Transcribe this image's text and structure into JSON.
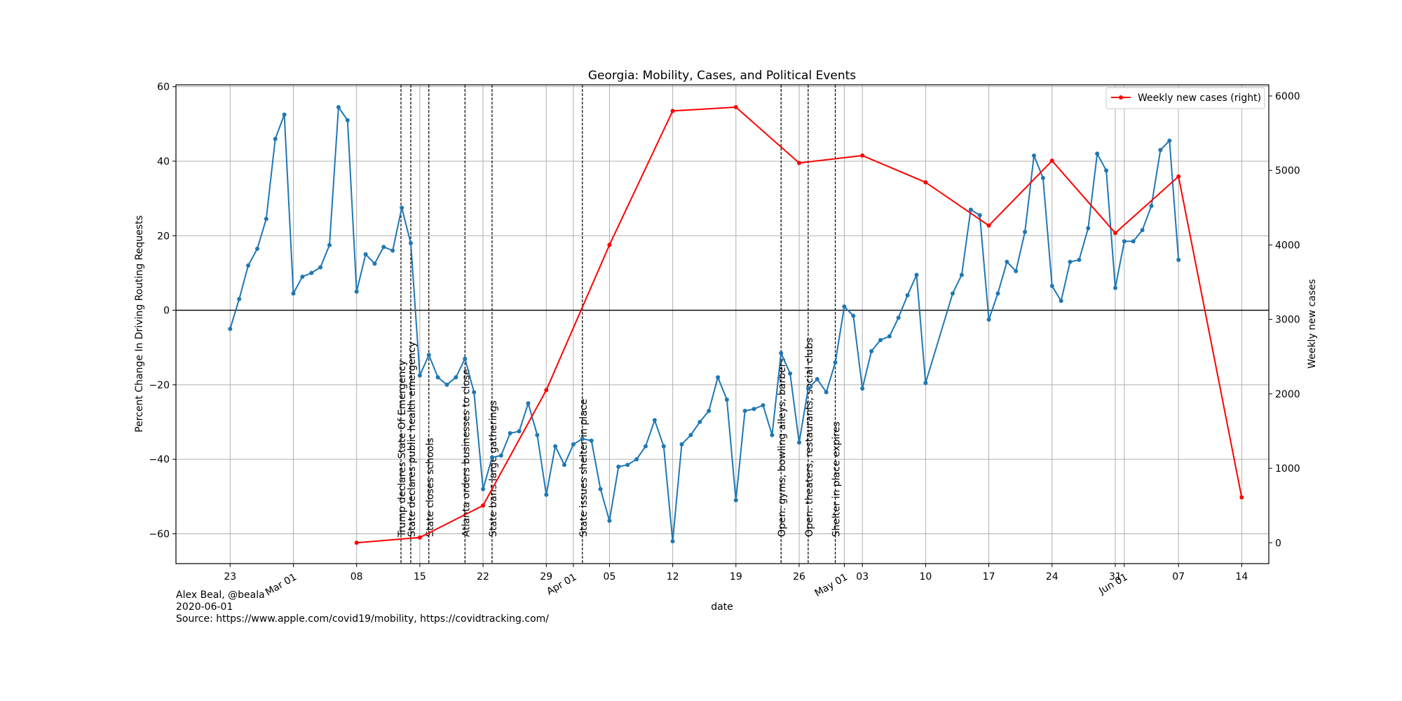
{
  "chart_data": {
    "type": "line",
    "title": "Georgia: Mobility, Cases, and Political Events",
    "xlabel": "date",
    "ylabel_left": "Percent Change In Driving Routing Requests",
    "ylabel_right": "Weekly new cases",
    "ylim_left": [
      -68,
      60.5
    ],
    "ylim_right": [
      -280,
      6150
    ],
    "xlim": [
      "2020-02-17",
      "2020-06-17"
    ],
    "grid": true,
    "legend_placement": "top-right",
    "left_ticks": [
      -60,
      -40,
      -20,
      0,
      20,
      40,
      60
    ],
    "right_ticks": [
      0,
      1000,
      2000,
      3000,
      4000,
      5000,
      6000
    ],
    "left_tick_labels": [
      "−60",
      "−40",
      "−20",
      "0",
      "20",
      "40",
      "60"
    ],
    "right_tick_labels": [
      "0",
      "1000",
      "2000",
      "3000",
      "4000",
      "5000",
      "6000"
    ],
    "x_ticks": [
      {
        "date": "2020-02-23",
        "label": "23",
        "rotated": false
      },
      {
        "date": "2020-03-01",
        "label": "Mar 01",
        "rotated": true
      },
      {
        "date": "2020-03-08",
        "label": "08",
        "rotated": false
      },
      {
        "date": "2020-03-15",
        "label": "15",
        "rotated": false
      },
      {
        "date": "2020-03-22",
        "label": "22",
        "rotated": false
      },
      {
        "date": "2020-03-29",
        "label": "29",
        "rotated": false
      },
      {
        "date": "2020-04-01",
        "label": "Apr 01",
        "rotated": true
      },
      {
        "date": "2020-04-05",
        "label": "05",
        "rotated": false
      },
      {
        "date": "2020-04-12",
        "label": "12",
        "rotated": false
      },
      {
        "date": "2020-04-19",
        "label": "19",
        "rotated": false
      },
      {
        "date": "2020-04-26",
        "label": "26",
        "rotated": false
      },
      {
        "date": "2020-05-01",
        "label": "May 01",
        "rotated": true
      },
      {
        "date": "2020-05-03",
        "label": "03",
        "rotated": false
      },
      {
        "date": "2020-05-10",
        "label": "10",
        "rotated": false
      },
      {
        "date": "2020-05-17",
        "label": "17",
        "rotated": false
      },
      {
        "date": "2020-05-24",
        "label": "24",
        "rotated": false
      },
      {
        "date": "2020-05-31",
        "label": "31",
        "rotated": false
      },
      {
        "date": "2020-06-01",
        "label": "Jun 01",
        "rotated": true
      },
      {
        "date": "2020-06-07",
        "label": "07",
        "rotated": false
      },
      {
        "date": "2020-06-14",
        "label": "14",
        "rotated": false
      }
    ],
    "series": [
      {
        "axis": "left",
        "color": "#1f77b4",
        "points": [
          [
            "2020-02-23",
            -5
          ],
          [
            "2020-02-24",
            3
          ],
          [
            "2020-02-25",
            12
          ],
          [
            "2020-02-26",
            16.5
          ],
          [
            "2020-02-27",
            24.5
          ],
          [
            "2020-02-28",
            46
          ],
          [
            "2020-02-29",
            52.5
          ],
          [
            "2020-03-01",
            4.5
          ],
          [
            "2020-03-02",
            9
          ],
          [
            "2020-03-03",
            10
          ],
          [
            "2020-03-04",
            11.5
          ],
          [
            "2020-03-05",
            17.5
          ],
          [
            "2020-03-06",
            54.5
          ],
          [
            "2020-03-07",
            51
          ],
          [
            "2020-03-08",
            5
          ],
          [
            "2020-03-09",
            15
          ],
          [
            "2020-03-10",
            12.5
          ],
          [
            "2020-03-11",
            17
          ],
          [
            "2020-03-12",
            16
          ],
          [
            "2020-03-13",
            27.5
          ],
          [
            "2020-03-14",
            18
          ],
          [
            "2020-03-15",
            -17.5
          ],
          [
            "2020-03-16",
            -12
          ],
          [
            "2020-03-17",
            -18
          ],
          [
            "2020-03-18",
            -20
          ],
          [
            "2020-03-19",
            -18
          ],
          [
            "2020-03-20",
            -13
          ],
          [
            "2020-03-21",
            -22
          ],
          [
            "2020-03-22",
            -48
          ],
          [
            "2020-03-23",
            -39.5
          ],
          [
            "2020-03-24",
            -39
          ],
          [
            "2020-03-25",
            -33
          ],
          [
            "2020-03-26",
            -32.5
          ],
          [
            "2020-03-27",
            -25
          ],
          [
            "2020-03-28",
            -33.5
          ],
          [
            "2020-03-29",
            -49.5
          ],
          [
            "2020-03-30",
            -36.5
          ],
          [
            "2020-03-31",
            -41.5
          ],
          [
            "2020-04-01",
            -36
          ],
          [
            "2020-04-02",
            -34.5
          ],
          [
            "2020-04-03",
            -35
          ],
          [
            "2020-04-04",
            -48
          ],
          [
            "2020-04-05",
            -56.5
          ],
          [
            "2020-04-06",
            -42
          ],
          [
            "2020-04-07",
            -41.5
          ],
          [
            "2020-04-08",
            -40
          ],
          [
            "2020-04-09",
            -36.5
          ],
          [
            "2020-04-10",
            -29.5
          ],
          [
            "2020-04-11",
            -36.5
          ],
          [
            "2020-04-12",
            -62
          ],
          [
            "2020-04-13",
            -36
          ],
          [
            "2020-04-14",
            -33.5
          ],
          [
            "2020-04-15",
            -30
          ],
          [
            "2020-04-16",
            -27
          ],
          [
            "2020-04-17",
            -18
          ],
          [
            "2020-04-18",
            -24
          ],
          [
            "2020-04-19",
            -51
          ],
          [
            "2020-04-20",
            -27
          ],
          [
            "2020-04-21",
            -26.5
          ],
          [
            "2020-04-22",
            -25.5
          ],
          [
            "2020-04-23",
            -33.5
          ],
          [
            "2020-04-24",
            -11.5
          ],
          [
            "2020-04-25",
            -17
          ],
          [
            "2020-04-26",
            -35.5
          ],
          [
            "2020-04-27",
            -21
          ],
          [
            "2020-04-28",
            -18.5
          ],
          [
            "2020-04-29",
            -22
          ],
          [
            "2020-04-30",
            -14
          ],
          [
            "2020-05-01",
            1
          ],
          [
            "2020-05-02",
            -1.5
          ],
          [
            "2020-05-03",
            -21
          ],
          [
            "2020-05-04",
            -11
          ],
          [
            "2020-05-05",
            -8
          ],
          [
            "2020-05-06",
            -7
          ],
          [
            "2020-05-07",
            -2
          ],
          [
            "2020-05-08",
            4
          ],
          [
            "2020-05-09",
            9.5
          ],
          [
            "2020-05-10",
            -19.5
          ],
          [
            "2020-05-13",
            4.5
          ],
          [
            "2020-05-14",
            9.5
          ],
          [
            "2020-05-15",
            27
          ],
          [
            "2020-05-16",
            25.5
          ],
          [
            "2020-05-17",
            -2.5
          ],
          [
            "2020-05-18",
            4.5
          ],
          [
            "2020-05-19",
            13
          ],
          [
            "2020-05-20",
            10.5
          ],
          [
            "2020-05-21",
            21
          ],
          [
            "2020-05-22",
            41.5
          ],
          [
            "2020-05-23",
            35.5
          ],
          [
            "2020-05-24",
            6.5
          ],
          [
            "2020-05-25",
            2.5
          ],
          [
            "2020-05-26",
            13
          ],
          [
            "2020-05-27",
            13.5
          ],
          [
            "2020-05-28",
            22
          ],
          [
            "2020-05-29",
            42
          ],
          [
            "2020-05-30",
            37.5
          ],
          [
            "2020-05-31",
            6
          ],
          [
            "2020-06-01",
            18.5
          ],
          [
            "2020-06-02",
            18.5
          ],
          [
            "2020-06-03",
            21.5
          ],
          [
            "2020-06-04",
            28
          ],
          [
            "2020-06-05",
            43
          ],
          [
            "2020-06-06",
            45.5
          ],
          [
            "2020-06-07",
            13.5
          ]
        ]
      },
      {
        "name": "Weekly new cases (right)",
        "axis": "right",
        "color": "#ff0000",
        "points": [
          [
            "2020-03-08",
            0
          ],
          [
            "2020-03-15",
            70
          ],
          [
            "2020-03-22",
            500
          ],
          [
            "2020-03-29",
            2050
          ],
          [
            "2020-04-05",
            4000
          ],
          [
            "2020-04-12",
            5800
          ],
          [
            "2020-04-19",
            5850
          ],
          [
            "2020-04-26",
            5100
          ],
          [
            "2020-05-03",
            5200
          ],
          [
            "2020-05-10",
            4840
          ],
          [
            "2020-05-17",
            4260
          ],
          [
            "2020-05-24",
            5130
          ],
          [
            "2020-05-31",
            4160
          ],
          [
            "2020-06-07",
            4920
          ],
          [
            "2020-06-14",
            610
          ]
        ]
      }
    ],
    "events": [
      {
        "date": "2020-03-14",
        "label": "Trump declares State Of Emergency",
        "offset": -1
      },
      {
        "date": "2020-03-14",
        "label": "State declares public health emergency",
        "offset": 0
      },
      {
        "date": "2020-03-16",
        "label": "State closes schools",
        "offset": 0
      },
      {
        "date": "2020-03-20",
        "label": "Atlanta orders businesses to close",
        "offset": 0
      },
      {
        "date": "2020-03-23",
        "label": "State bans large gatherings",
        "offset": 0
      },
      {
        "date": "2020-04-02",
        "label": "State issues shelter in place",
        "offset": 0
      },
      {
        "date": "2020-04-24",
        "label": "Open: gyms, bowling alleys, barbers",
        "offset": 0
      },
      {
        "date": "2020-04-27",
        "label": "Open: theaters, restaurants, social clubs",
        "offset": 0
      },
      {
        "date": "2020-04-30",
        "label": "Shelter in place expires",
        "offset": 0
      }
    ]
  },
  "footer": {
    "author": "Alex Beal, @beala",
    "date": "2020-06-01",
    "source": "Source: https://www.apple.com/covid19/mobility, https://covidtracking.com/"
  }
}
